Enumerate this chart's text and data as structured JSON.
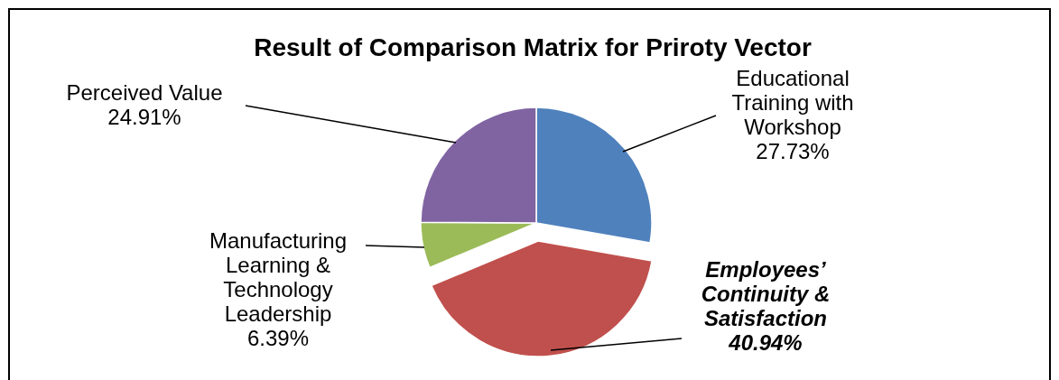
{
  "chart_data": {
    "type": "pie",
    "title": "Result of Comparison Matrix for Priroty Vector",
    "categories": [
      "Educational Training with Workshop",
      "Employees’ Continuity & Satisfaction",
      "Manufacturing Learning & Technology Leadership",
      "Perceived Value"
    ],
    "values": [
      27.73,
      40.94,
      6.39,
      24.91
    ],
    "value_labels": [
      "27.73%",
      "40.94%",
      "6.39%",
      "24.91%"
    ],
    "colors": [
      "#4f81bd",
      "#c0504d",
      "#9bbb59",
      "#8064a2"
    ]
  }
}
